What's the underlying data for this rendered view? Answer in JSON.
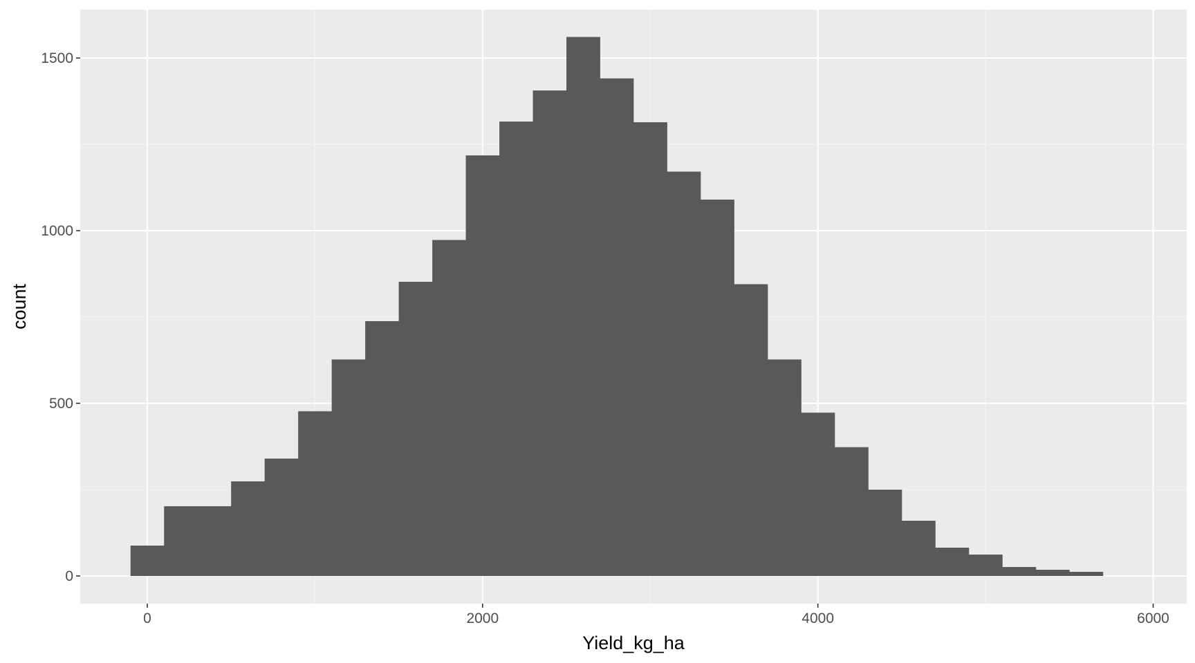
{
  "chart_data": {
    "type": "bar",
    "subtype": "histogram",
    "xlabel": "Yield_kg_ha",
    "ylabel": "count",
    "xlim": [
      -400,
      6200
    ],
    "ylim": [
      -80,
      1640
    ],
    "x_ticks": [
      0,
      2000,
      4000,
      6000
    ],
    "y_ticks": [
      0,
      500,
      1000,
      1500
    ],
    "x_tick_labels": [
      "0",
      "2000",
      "4000",
      "6000"
    ],
    "y_tick_labels": [
      "0",
      "500",
      "1000",
      "1500"
    ],
    "x_minor": [
      1000,
      3000,
      5000
    ],
    "y_minor": [
      250,
      750,
      1250
    ],
    "grid": true,
    "legend": "none",
    "bins": [
      {
        "x0": -100,
        "x1": 100,
        "count": 88
      },
      {
        "x0": 100,
        "x1": 300,
        "count": 202
      },
      {
        "x0": 300,
        "x1": 500,
        "count": 202
      },
      {
        "x0": 500,
        "x1": 700,
        "count": 274
      },
      {
        "x0": 700,
        "x1": 900,
        "count": 340
      },
      {
        "x0": 900,
        "x1": 1100,
        "count": 477
      },
      {
        "x0": 1100,
        "x1": 1300,
        "count": 627
      },
      {
        "x0": 1300,
        "x1": 1500,
        "count": 738
      },
      {
        "x0": 1500,
        "x1": 1700,
        "count": 852
      },
      {
        "x0": 1700,
        "x1": 1900,
        "count": 973
      },
      {
        "x0": 1900,
        "x1": 2100,
        "count": 1218
      },
      {
        "x0": 2100,
        "x1": 2300,
        "count": 1316
      },
      {
        "x0": 2300,
        "x1": 2500,
        "count": 1406
      },
      {
        "x0": 2500,
        "x1": 2700,
        "count": 1561
      },
      {
        "x0": 2700,
        "x1": 2900,
        "count": 1441
      },
      {
        "x0": 2900,
        "x1": 3100,
        "count": 1314
      },
      {
        "x0": 3100,
        "x1": 3300,
        "count": 1171
      },
      {
        "x0": 3300,
        "x1": 3500,
        "count": 1090
      },
      {
        "x0": 3500,
        "x1": 3700,
        "count": 845
      },
      {
        "x0": 3700,
        "x1": 3900,
        "count": 627
      },
      {
        "x0": 3900,
        "x1": 4100,
        "count": 473
      },
      {
        "x0": 4100,
        "x1": 4300,
        "count": 373
      },
      {
        "x0": 4300,
        "x1": 4500,
        "count": 250
      },
      {
        "x0": 4500,
        "x1": 4700,
        "count": 160
      },
      {
        "x0": 4700,
        "x1": 4900,
        "count": 82
      },
      {
        "x0": 4900,
        "x1": 5100,
        "count": 62
      },
      {
        "x0": 5100,
        "x1": 5300,
        "count": 26
      },
      {
        "x0": 5300,
        "x1": 5500,
        "count": 18
      },
      {
        "x0": 5500,
        "x1": 5700,
        "count": 12
      }
    ],
    "colors": {
      "panel_background": "#ebebeb",
      "grid_major": "#ffffff",
      "grid_minor": "#f5f5f5",
      "bar_fill": "#595959",
      "tick_color": "#333333",
      "tick_label_color": "#4d4d4d",
      "axis_title_color": "#000000"
    }
  }
}
